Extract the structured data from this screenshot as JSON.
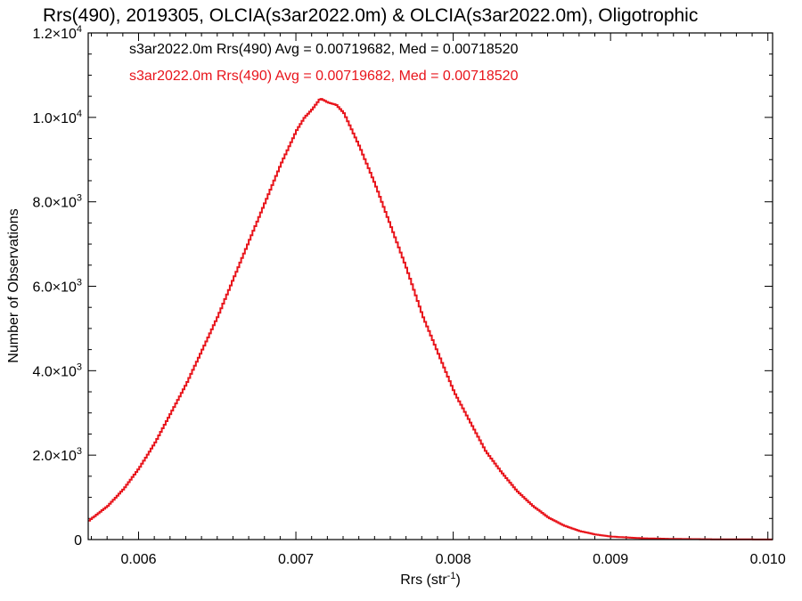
{
  "chart_data": {
    "type": "line",
    "title": "Rrs(490), 2019305, OLCIA(s3ar2022.0m) & OLCIA(s3ar2022.0m), Oligotrophic",
    "xlabel": "Rrs (str",
    "xlabel_sup": "-1",
    "xlabel_end": ")",
    "ylabel": "Number of Observations",
    "xlim": [
      0.00568,
      0.01003
    ],
    "ylim": [
      0,
      12000
    ],
    "x_ticks": [
      {
        "value": 0.006,
        "label": "0.006"
      },
      {
        "value": 0.007,
        "label": "0.007"
      },
      {
        "value": 0.008,
        "label": "0.008"
      },
      {
        "value": 0.009,
        "label": "0.009"
      },
      {
        "value": 0.01,
        "label": "0.010"
      }
    ],
    "y_ticks": [
      {
        "value": 0,
        "mant": "0",
        "exp": ""
      },
      {
        "value": 2000,
        "mant": "2.0×10",
        "exp": "3"
      },
      {
        "value": 4000,
        "mant": "4.0×10",
        "exp": "3"
      },
      {
        "value": 6000,
        "mant": "6.0×10",
        "exp": "3"
      },
      {
        "value": 8000,
        "mant": "8.0×10",
        "exp": "3"
      },
      {
        "value": 10000,
        "mant": "1.0×10",
        "exp": "4"
      },
      {
        "value": 12000,
        "mant": "1.2×10",
        "exp": "4"
      }
    ],
    "legend": [
      {
        "text": "s3ar2022.0m Rrs(490) Avg = 0.00719682, Med = 0.00718520",
        "color": "#000000"
      },
      {
        "text": "s3ar2022.0m Rrs(490) Avg = 0.00719682, Med = 0.00718520",
        "color": "#e8141b"
      }
    ],
    "series": [
      {
        "color": "#e8141b",
        "style": "step",
        "x": [
          0.00568,
          0.0058,
          0.0059,
          0.006,
          0.0061,
          0.0062,
          0.0063,
          0.0064,
          0.0065,
          0.0066,
          0.0067,
          0.0068,
          0.0069,
          0.007,
          0.00705,
          0.0071,
          0.00715,
          0.0072,
          0.00725,
          0.0073,
          0.0074,
          0.0075,
          0.0076,
          0.0077,
          0.0078,
          0.0079,
          0.008,
          0.0081,
          0.0082,
          0.0083,
          0.0084,
          0.0085,
          0.0086,
          0.0087,
          0.0088,
          0.0089,
          0.009,
          0.0092,
          0.0094,
          0.0096,
          0.0098,
          0.01003
        ],
        "y": [
          450,
          800,
          1200,
          1700,
          2300,
          3000,
          3700,
          4500,
          5300,
          6200,
          7100,
          8000,
          8900,
          9700,
          10000,
          10200,
          10450,
          10350,
          10300,
          10100,
          9300,
          8400,
          7400,
          6400,
          5300,
          4400,
          3500,
          2800,
          2100,
          1600,
          1150,
          800,
          520,
          330,
          200,
          120,
          70,
          30,
          15,
          8,
          4,
          2
        ]
      }
    ]
  }
}
